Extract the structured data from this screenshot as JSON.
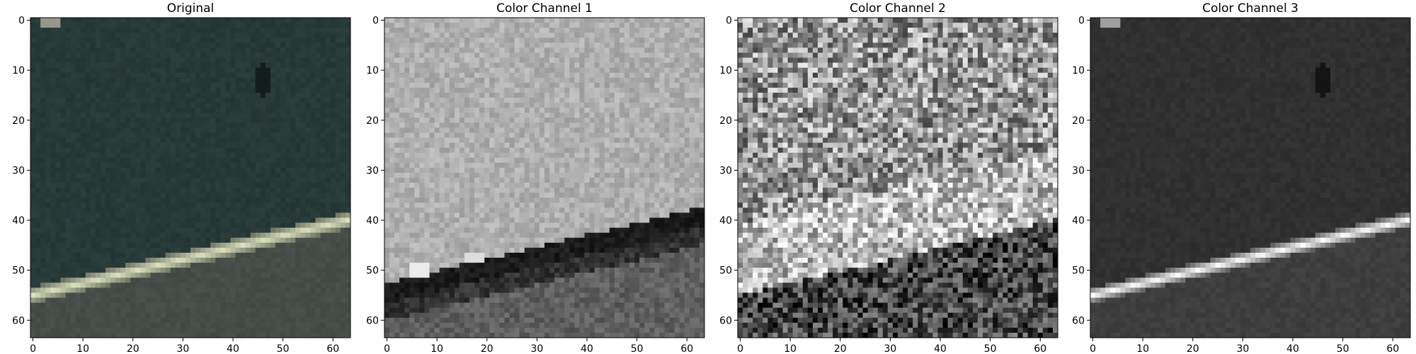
{
  "figure": {
    "panels": [
      {
        "id": "p1",
        "title": "Original",
        "kind": "rgb-road"
      },
      {
        "id": "p2",
        "title": "Color Channel 1",
        "kind": "channel1"
      },
      {
        "id": "p3",
        "title": "Color Channel 2",
        "kind": "channel2"
      },
      {
        "id": "p4",
        "title": "Color Channel 3",
        "kind": "channel3"
      }
    ]
  },
  "chart_data": [
    {
      "type": "heatmap",
      "title": "Original",
      "xlabel": "",
      "ylabel": "",
      "xlim": [
        0,
        63
      ],
      "ylim": [
        63,
        0
      ],
      "xticks": [
        0,
        10,
        20,
        30,
        40,
        50,
        60
      ],
      "yticks": [
        0,
        10,
        20,
        30,
        40,
        50,
        60
      ],
      "image_size": [
        64,
        64
      ],
      "content": "dark green road surface with a bright white-yellow lane stripe running diagonally from about (0,55) to (63,40)",
      "colors": {
        "background": "#2a3b39",
        "lower_road": "#454d47",
        "stripe": "#d9dcbc"
      }
    },
    {
      "type": "heatmap",
      "title": "Color Channel 1",
      "xlabel": "",
      "ylabel": "",
      "xlim": [
        0,
        63
      ],
      "ylim": [
        63,
        0
      ],
      "xticks": [
        0,
        10,
        20,
        30,
        40,
        50,
        60
      ],
      "yticks": [
        0,
        10,
        20,
        30,
        40,
        50,
        60
      ],
      "image_size": [
        64,
        64
      ],
      "colormap": "gray",
      "content": "light gray upper region, dark band along the lane boundary, mid-gray lower region"
    },
    {
      "type": "heatmap",
      "title": "Color Channel 2",
      "xlabel": "",
      "ylabel": "",
      "xlim": [
        0,
        63
      ],
      "ylim": [
        63,
        0
      ],
      "xticks": [
        0,
        10,
        20,
        30,
        40,
        50,
        60
      ],
      "yticks": [
        0,
        10,
        20,
        30,
        40,
        50,
        60
      ],
      "image_size": [
        64,
        64
      ],
      "colormap": "gray",
      "content": "high-contrast noisy texture, brighter in the middle band"
    },
    {
      "type": "heatmap",
      "title": "Color Channel 3",
      "xlabel": "",
      "ylabel": "",
      "xlim": [
        0,
        63
      ],
      "ylim": [
        63,
        0
      ],
      "xticks": [
        0,
        10,
        20,
        30,
        40,
        50,
        60
      ],
      "yticks": [
        0,
        10,
        20,
        30,
        40,
        50,
        60
      ],
      "image_size": [
        64,
        64
      ],
      "colormap": "gray",
      "content": "dark background with a bright diagonal lane stripe from about (0,55) to (63,40)"
    }
  ]
}
